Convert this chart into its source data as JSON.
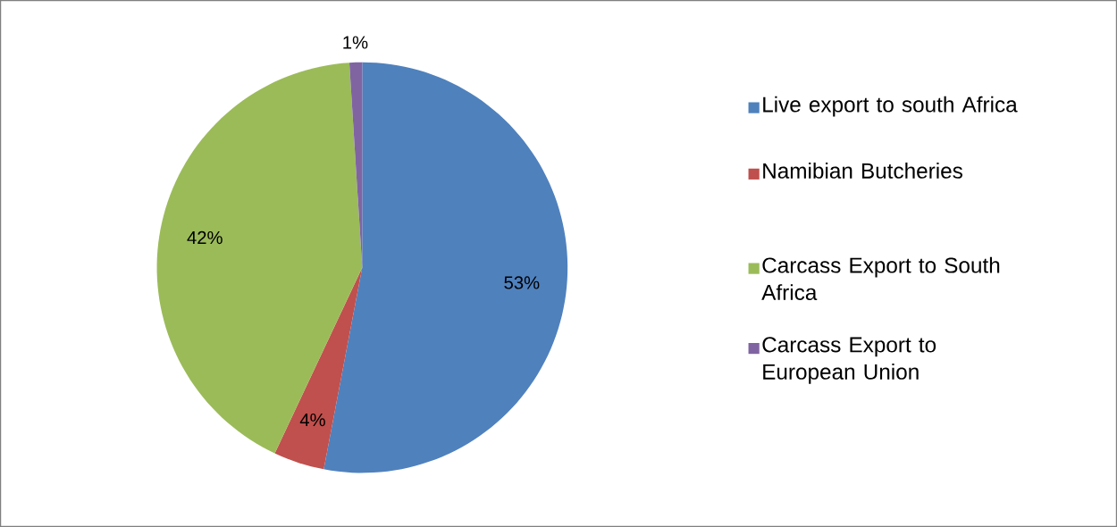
{
  "chart_data": {
    "type": "pie",
    "categories": [
      "Live export to south Africa",
      "Namibian Butcheries",
      "Carcass Export to South Africa",
      "Carcass Export to European Union"
    ],
    "values": [
      53,
      4,
      42,
      1
    ],
    "value_labels": [
      "53%",
      "4%",
      "42%",
      "1%"
    ],
    "colors": [
      "#4f81bd",
      "#c0504d",
      "#9bbb59",
      "#8064a2"
    ],
    "legend": "right"
  }
}
